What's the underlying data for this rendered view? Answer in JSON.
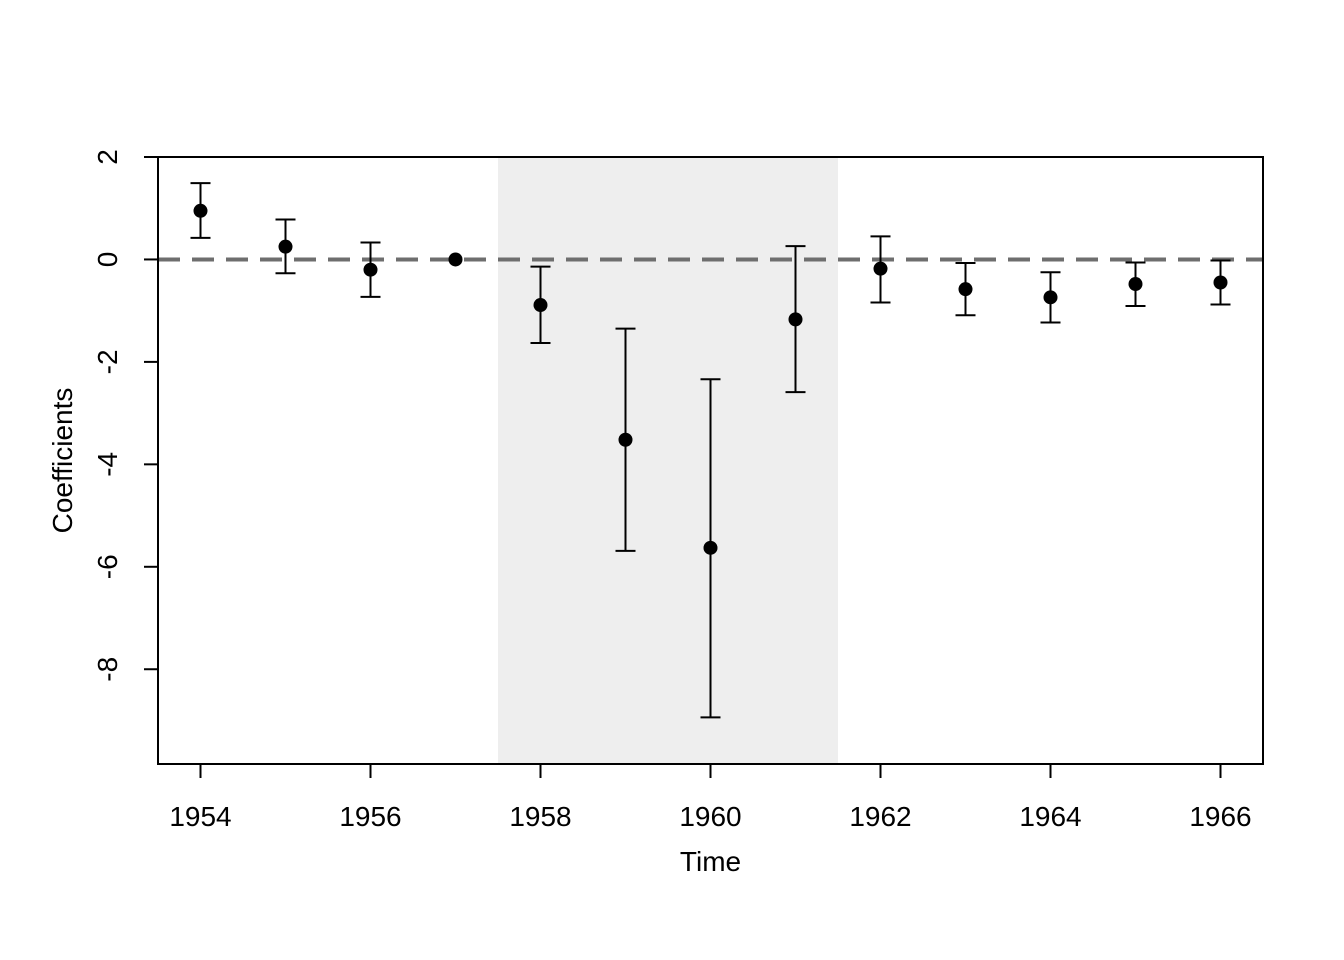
{
  "chart_data": {
    "type": "scatter",
    "title": "",
    "xlabel": "Time",
    "ylabel": "Coefficients",
    "xlim": [
      1953.5,
      1966.5
    ],
    "ylim": [
      -9.85,
      2.0
    ],
    "x_ticks": [
      1954,
      1956,
      1958,
      1960,
      1962,
      1964,
      1966
    ],
    "x_tick_labels": [
      "1954",
      "1956",
      "1958",
      "1960",
      "1962",
      "1964",
      "1966"
    ],
    "y_ticks": [
      2,
      0,
      -2,
      -4,
      -6,
      -8
    ],
    "y_tick_labels": [
      "2",
      "0",
      "-2",
      "-4",
      "-6",
      "-8"
    ],
    "shaded_region": {
      "x": [
        1957.5,
        1961.5
      ],
      "color": "#eeeeee"
    },
    "reference_line": {
      "y": 0,
      "style": "dashed",
      "color": "#6e6e6e"
    },
    "grid": false,
    "legend": "none",
    "colors": {
      "points": "#000000",
      "errorbars": "#000000",
      "axes": "#000000"
    },
    "series": [
      {
        "x": [
          1954,
          1955,
          1956,
          1957,
          1958,
          1959,
          1960,
          1961,
          1962,
          1963,
          1964,
          1965,
          1966
        ],
        "values": [
          0.95,
          0.25,
          -0.2,
          0.0,
          -0.89,
          -3.52,
          -5.63,
          -1.17,
          -0.18,
          -0.58,
          -0.74,
          -0.48,
          -0.45
        ],
        "lower": [
          0.42,
          -0.27,
          -0.73,
          null,
          -1.63,
          -5.69,
          -8.94,
          -2.59,
          -0.84,
          -1.09,
          -1.23,
          -0.91,
          -0.88
        ],
        "upper": [
          1.49,
          0.78,
          0.33,
          null,
          -0.14,
          -1.35,
          -2.34,
          0.26,
          0.45,
          -0.07,
          -0.25,
          -0.06,
          -0.02
        ]
      }
    ]
  }
}
